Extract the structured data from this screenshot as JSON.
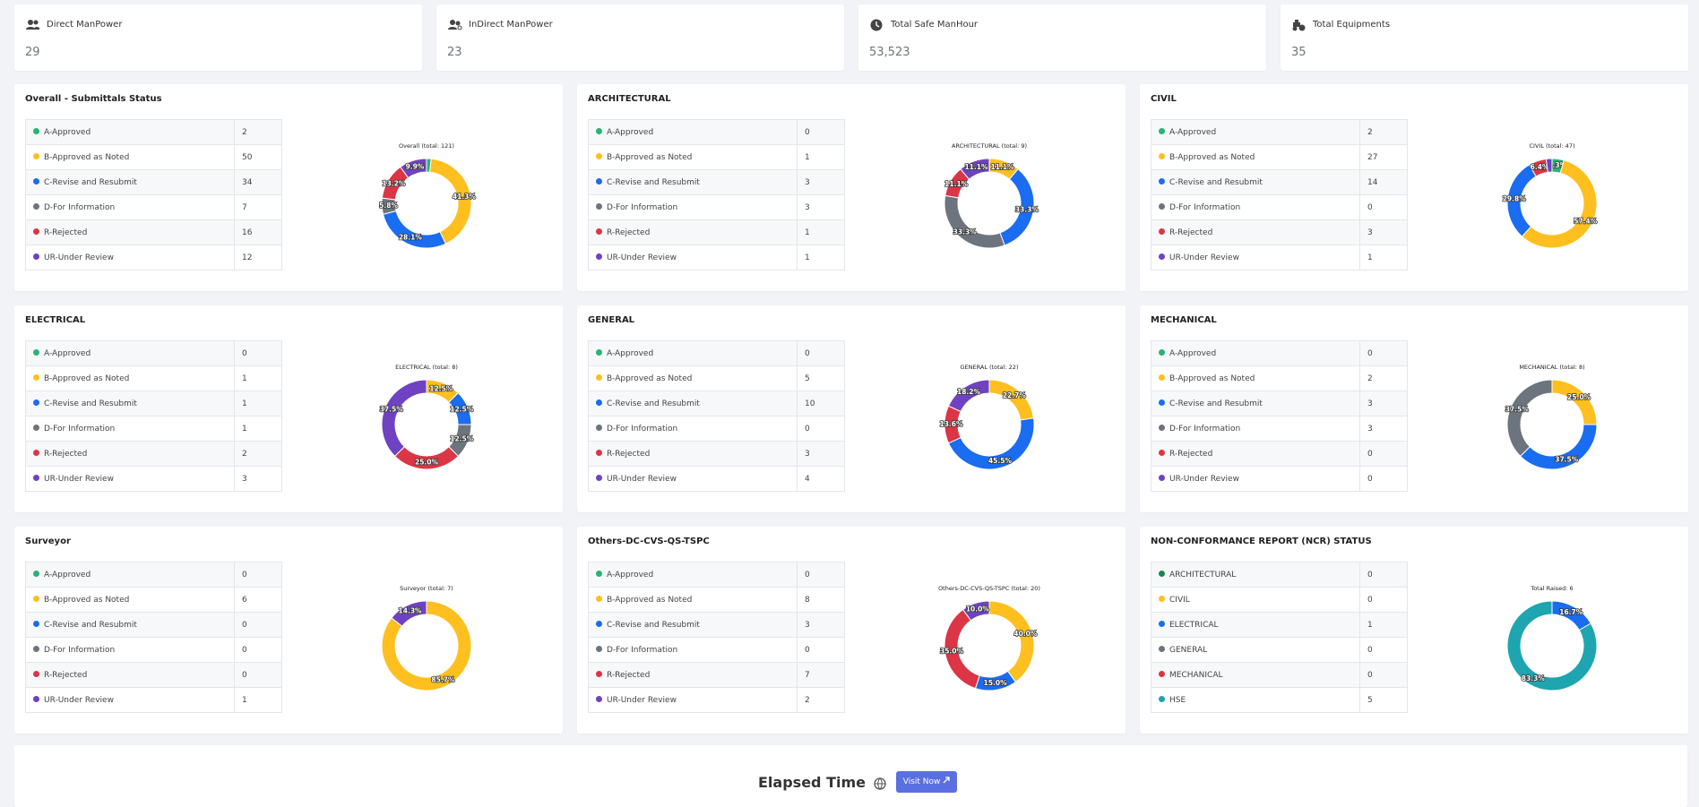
{
  "legend_colors": [
    "#28b473",
    "#ffbf1f",
    "#1a6cf0",
    "#6c757d",
    "#dc3545",
    "#6f42c1"
  ],
  "cards": [
    {
      "title": "Direct ManPower",
      "value": "29"
    },
    {
      "title": "InDirect ManPower",
      "value": "23"
    },
    {
      "title": "Total Safe ManHour",
      "value": "53,523"
    },
    {
      "title": "Total Equipments",
      "value": "35"
    }
  ],
  "panels": [
    {
      "title": "Overall - Submittals Status",
      "rows": [
        {
          "label": "A-Approved",
          "value": 2
        },
        {
          "label": "B-Approved as Noted",
          "value": 50
        },
        {
          "label": "C-Revise and Resubmit",
          "value": 34
        },
        {
          "label": "D-For Information",
          "value": 7
        },
        {
          "label": "R-Rejected",
          "value": 16
        },
        {
          "label": "UR-Under Review",
          "value": 12
        }
      ],
      "donut": {
        "title": "Overall (total: 121)",
        "labels": [
          null,
          "41.3%",
          "28.1%",
          "5.8%",
          "13.2%",
          "9.9%"
        ]
      }
    },
    {
      "title": "ARCHITECTURAL",
      "rows": [
        {
          "label": "A-Approved",
          "value": 0
        },
        {
          "label": "B-Approved as Noted",
          "value": 1
        },
        {
          "label": "C-Revise and Resubmit",
          "value": 3
        },
        {
          "label": "D-For Information",
          "value": 3
        },
        {
          "label": "R-Rejected",
          "value": 1
        },
        {
          "label": "UR-Under Review",
          "value": 1
        }
      ],
      "donut": {
        "title": "ARCHITECTURAL (total: 9)",
        "labels": [
          null,
          "11.1%",
          "33.3%",
          "33.3%",
          "11.1%",
          "11.1%"
        ]
      }
    },
    {
      "title": "CIVIL",
      "rows": [
        {
          "label": "A-Approved",
          "value": 2
        },
        {
          "label": "B-Approved as Noted",
          "value": 27
        },
        {
          "label": "C-Revise and Resubmit",
          "value": 14
        },
        {
          "label": "D-For Information",
          "value": 0
        },
        {
          "label": "R-Rejected",
          "value": 3
        },
        {
          "label": "UR-Under Review",
          "value": 1
        }
      ],
      "donut": {
        "title": "CIVIL (total: 47)",
        "labels": [
          "4.3%",
          "57.4%",
          "29.8%",
          null,
          "6.4%",
          null
        ]
      }
    },
    {
      "title": "ELECTRICAL",
      "rows": [
        {
          "label": "A-Approved",
          "value": 0
        },
        {
          "label": "B-Approved as Noted",
          "value": 1
        },
        {
          "label": "C-Revise and Resubmit",
          "value": 1
        },
        {
          "label": "D-For Information",
          "value": 1
        },
        {
          "label": "R-Rejected",
          "value": 2
        },
        {
          "label": "UR-Under Review",
          "value": 3
        }
      ],
      "donut": {
        "title": "ELECTRICAL (total: 8)",
        "labels": [
          null,
          "12.5%",
          "12.5%",
          "12.5%",
          "25.0%",
          "37.5%"
        ]
      }
    },
    {
      "title": "GENERAL",
      "rows": [
        {
          "label": "A-Approved",
          "value": 0
        },
        {
          "label": "B-Approved as Noted",
          "value": 5
        },
        {
          "label": "C-Revise and Resubmit",
          "value": 10
        },
        {
          "label": "D-For Information",
          "value": 0
        },
        {
          "label": "R-Rejected",
          "value": 3
        },
        {
          "label": "UR-Under Review",
          "value": 4
        }
      ],
      "donut": {
        "title": "GENERAL (total: 22)",
        "labels": [
          null,
          "22.7%",
          "45.5%",
          null,
          "13.6%",
          "18.2%"
        ]
      }
    },
    {
      "title": "MECHANICAL",
      "rows": [
        {
          "label": "A-Approved",
          "value": 0
        },
        {
          "label": "B-Approved as Noted",
          "value": 2
        },
        {
          "label": "C-Revise and Resubmit",
          "value": 3
        },
        {
          "label": "D-For Information",
          "value": 3
        },
        {
          "label": "R-Rejected",
          "value": 0
        },
        {
          "label": "UR-Under Review",
          "value": 0
        }
      ],
      "donut": {
        "title": "MECHANICAL (total: 8)",
        "labels": [
          null,
          "25.0%",
          "37.5%",
          "37.5%",
          null,
          null
        ]
      }
    },
    {
      "title": "Surveyor",
      "rows": [
        {
          "label": "A-Approved",
          "value": 0
        },
        {
          "label": "B-Approved as Noted",
          "value": 6
        },
        {
          "label": "C-Revise and Resubmit",
          "value": 0
        },
        {
          "label": "D-For Information",
          "value": 0
        },
        {
          "label": "R-Rejected",
          "value": 0
        },
        {
          "label": "UR-Under Review",
          "value": 1
        }
      ],
      "donut": {
        "title": "Surveyor (total: 7)",
        "labels": [
          null,
          "85.7%",
          null,
          null,
          null,
          "14.3%"
        ]
      }
    },
    {
      "title": "Others-DC-CVS-QS-TSPC",
      "rows": [
        {
          "label": "A-Approved",
          "value": 0
        },
        {
          "label": "B-Approved as Noted",
          "value": 8
        },
        {
          "label": "C-Revise and Resubmit",
          "value": 3
        },
        {
          "label": "D-For Information",
          "value": 0
        },
        {
          "label": "R-Rejected",
          "value": 7
        },
        {
          "label": "UR-Under Review",
          "value": 2
        }
      ],
      "donut": {
        "title": "Others-DC-CVS-QS-TSPC (total: 20)",
        "labels": [
          null,
          "40.0%",
          "15.0%",
          null,
          "35.0%",
          "10.0%"
        ]
      }
    },
    {
      "title": "NON-CONFORMANCE REPORT (NCR) STATUS",
      "colors": [
        "#198754",
        "#ffbf1f",
        "#1a6cf0",
        "#6c757d",
        "#dc3545",
        "#1ea5b0"
      ],
      "rows": [
        {
          "label": "ARCHITECTURAL",
          "value": 0
        },
        {
          "label": "CIVIL",
          "value": 0
        },
        {
          "label": "ELECTRICAL",
          "value": 1
        },
        {
          "label": "GENERAL",
          "value": 0
        },
        {
          "label": "MECHANICAL",
          "value": 0
        },
        {
          "label": "HSE",
          "value": 5
        }
      ],
      "donut": {
        "title": "Total Raised: 6",
        "labels": [
          null,
          null,
          "16.7%",
          null,
          null,
          "83.3%"
        ]
      }
    }
  ],
  "footer": {
    "title": "Elapsed Time",
    "button": "Visit Now"
  }
}
